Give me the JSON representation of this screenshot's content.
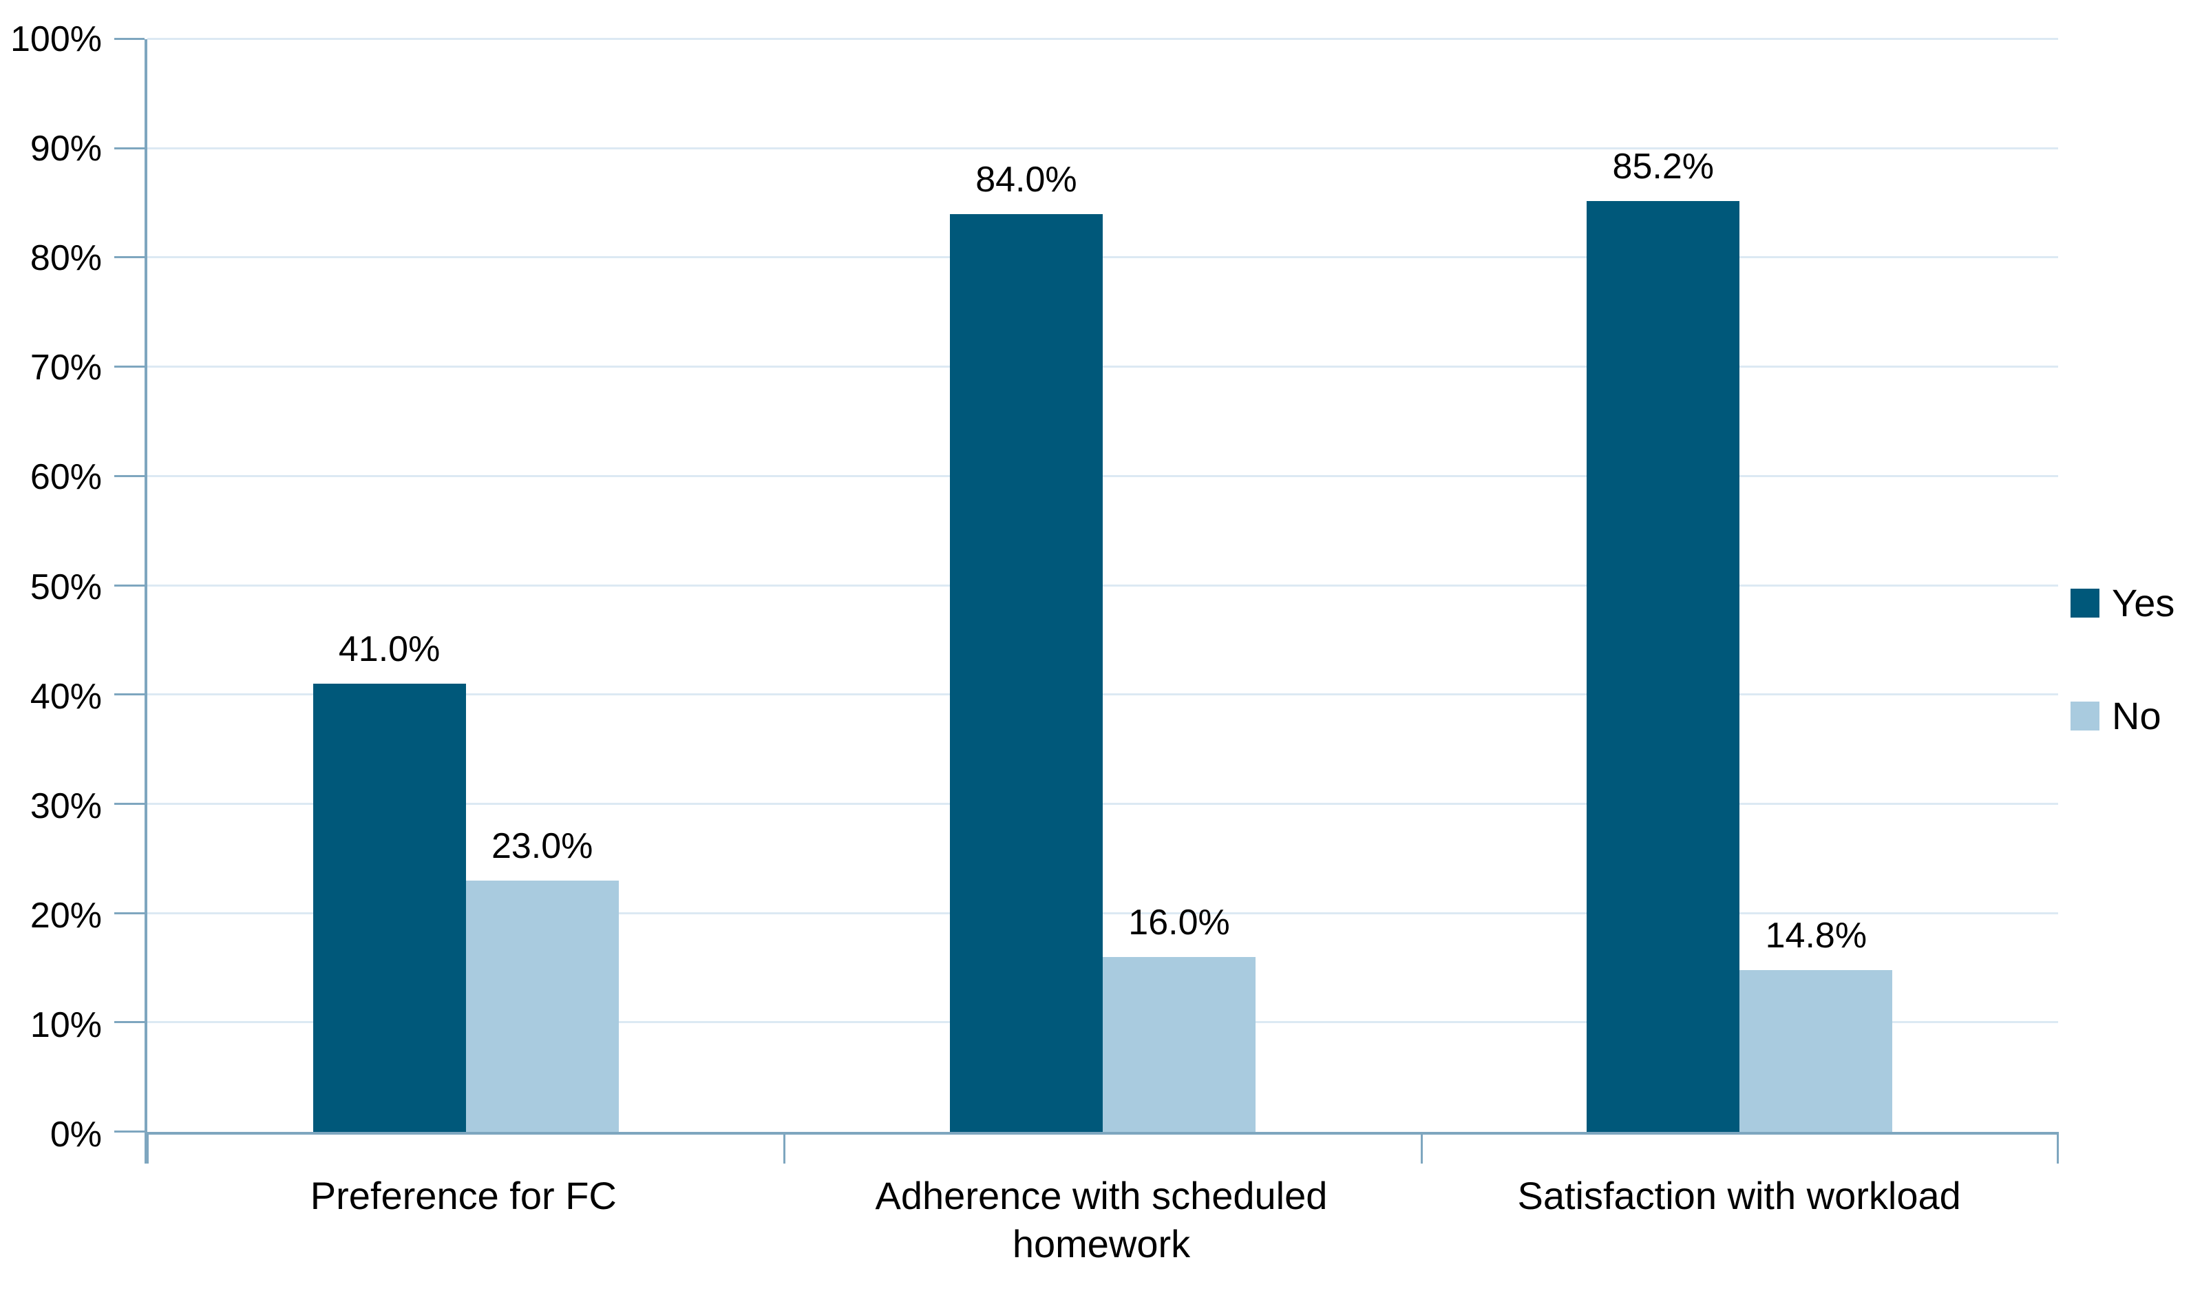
{
  "chart_data": {
    "type": "bar",
    "categories": [
      "Preference for FC",
      "Adherence with scheduled homework",
      "Satisfaction with workload"
    ],
    "series": [
      {
        "name": "Yes",
        "color": "#00587A",
        "values": [
          41.0,
          84.0,
          85.2
        ],
        "data_labels": [
          "41.0%",
          "84.0%",
          "85.2%"
        ]
      },
      {
        "name": "No",
        "color": "#A9CBDF",
        "values": [
          23.0,
          16.0,
          14.8
        ],
        "data_labels": [
          "23.0%",
          "16.0%",
          "14.8%"
        ]
      }
    ],
    "y_axis": {
      "min": 0,
      "max": 100,
      "step": 10,
      "tick_labels": [
        "0%",
        "10%",
        "20%",
        "30%",
        "40%",
        "50%",
        "60%",
        "70%",
        "80%",
        "90%",
        "100%"
      ]
    },
    "grid": true,
    "legend_position": "right",
    "colors": {
      "axis": "#7EA6BF",
      "gridline": "#DCE9F3",
      "label_text": "#000000"
    }
  },
  "legend": {
    "items": [
      {
        "label": "Yes",
        "color": "#00587A"
      },
      {
        "label": "No",
        "color": "#A9CBDF"
      }
    ]
  }
}
